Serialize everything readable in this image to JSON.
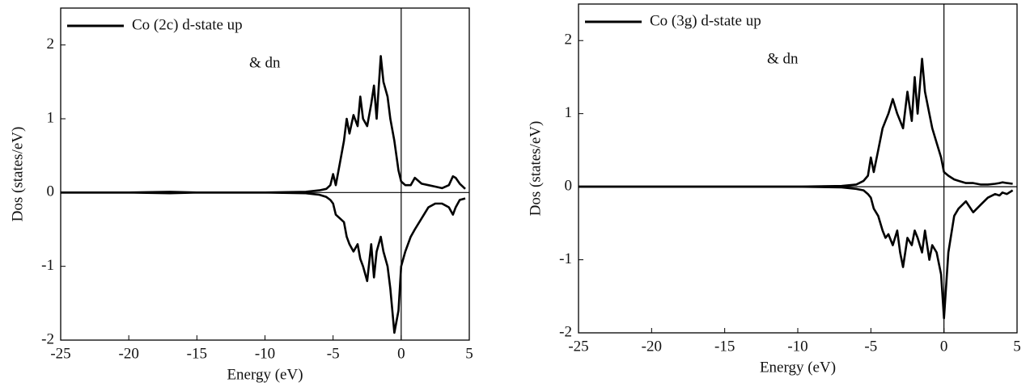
{
  "chart_data": [
    {
      "type": "line",
      "xlabel": "Energy (eV)",
      "ylabel": "Dos (states/eV)",
      "xlim": [
        -25,
        5
      ],
      "ylim": [
        -2,
        2.5
      ],
      "xticks": [
        -25,
        -20,
        -15,
        -10,
        -5,
        0,
        5
      ],
      "yticks": [
        -2,
        -1,
        0,
        1,
        2
      ],
      "legend": "upper left",
      "x": [
        -25,
        -20,
        -17,
        -15,
        -10,
        -7,
        -6,
        -5.5,
        -5.2,
        -5,
        -4.8,
        -4.5,
        -4.2,
        -4,
        -3.8,
        -3.5,
        -3.2,
        -3,
        -2.8,
        -2.5,
        -2.2,
        -2,
        -1.8,
        -1.5,
        -1.3,
        -1,
        -0.8,
        -0.5,
        -0.2,
        0,
        0.3,
        0.7,
        1,
        1.5,
        2,
        2.5,
        3,
        3.5,
        3.8,
        4,
        4.3,
        4.7
      ],
      "series": [
        {
          "name": "Co (2c) d-state up",
          "color": "#000000",
          "values": [
            0,
            0,
            0.01,
            0,
            0,
            0.01,
            0.03,
            0.05,
            0.1,
            0.25,
            0.1,
            0.4,
            0.7,
            1.0,
            0.8,
            1.05,
            0.9,
            1.3,
            1.0,
            0.9,
            1.2,
            1.45,
            1.0,
            1.85,
            1.5,
            1.3,
            1.0,
            0.7,
            0.3,
            0.15,
            0.1,
            0.1,
            0.2,
            0.12,
            0.1,
            0.08,
            0.06,
            0.1,
            0.22,
            0.2,
            0.12,
            0.05
          ]
        },
        {
          "name": "& dn",
          "color": "#000000",
          "values": [
            0,
            0,
            -0.01,
            0,
            0,
            -0.01,
            -0.03,
            -0.06,
            -0.1,
            -0.15,
            -0.3,
            -0.35,
            -0.4,
            -0.6,
            -0.7,
            -0.8,
            -0.7,
            -0.9,
            -1.0,
            -1.2,
            -0.7,
            -1.15,
            -0.8,
            -0.6,
            -0.8,
            -1.0,
            -1.3,
            -1.9,
            -1.6,
            -1.0,
            -0.8,
            -0.6,
            -0.5,
            -0.35,
            -0.2,
            -0.15,
            -0.15,
            -0.2,
            -0.3,
            -0.2,
            -0.1,
            -0.08
          ]
        }
      ]
    },
    {
      "type": "line",
      "xlabel": "Energy (eV)",
      "ylabel": "Dos (states/eV)",
      "xlim": [
        -25,
        5
      ],
      "ylim": [
        -2,
        2.5
      ],
      "xticks": [
        -25,
        -20,
        -15,
        -10,
        -5,
        0,
        5
      ],
      "yticks": [
        -2,
        -1,
        0,
        1,
        2
      ],
      "legend": "upper left",
      "x": [
        -25,
        -20,
        -17,
        -15,
        -10,
        -7,
        -6,
        -5.5,
        -5.2,
        -5,
        -4.8,
        -4.5,
        -4.2,
        -4,
        -3.8,
        -3.5,
        -3.2,
        -3,
        -2.8,
        -2.5,
        -2.2,
        -2,
        -1.8,
        -1.5,
        -1.3,
        -1,
        -0.8,
        -0.5,
        -0.2,
        0,
        0.3,
        0.7,
        1,
        1.5,
        2,
        2.5,
        3,
        3.5,
        3.8,
        4,
        4.3,
        4.7
      ],
      "series": [
        {
          "name": "Co (3g) d-state up",
          "color": "#000000",
          "values": [
            0,
            0,
            0,
            0,
            0,
            0.01,
            0.03,
            0.08,
            0.15,
            0.4,
            0.2,
            0.5,
            0.8,
            0.9,
            1.0,
            1.2,
            1.0,
            0.9,
            0.8,
            1.3,
            0.9,
            1.5,
            1.0,
            1.75,
            1.3,
            1.0,
            0.8,
            0.6,
            0.4,
            0.2,
            0.15,
            0.1,
            0.08,
            0.05,
            0.05,
            0.03,
            0.03,
            0.04,
            0.05,
            0.06,
            0.05,
            0.04
          ]
        },
        {
          "name": "& dn",
          "color": "#000000",
          "values": [
            0,
            0,
            0,
            0,
            0,
            -0.01,
            -0.03,
            -0.05,
            -0.1,
            -0.15,
            -0.3,
            -0.4,
            -0.6,
            -0.7,
            -0.65,
            -0.8,
            -0.6,
            -0.9,
            -1.1,
            -0.7,
            -0.8,
            -0.6,
            -0.7,
            -0.9,
            -0.6,
            -1.0,
            -0.8,
            -0.9,
            -1.2,
            -1.8,
            -0.9,
            -0.4,
            -0.3,
            -0.2,
            -0.35,
            -0.25,
            -0.15,
            -0.1,
            -0.12,
            -0.08,
            -0.1,
            -0.05
          ]
        }
      ]
    }
  ]
}
